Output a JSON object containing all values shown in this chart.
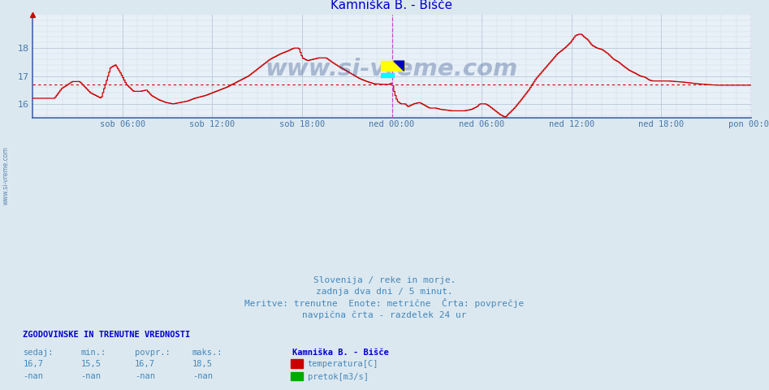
{
  "title": "Kamniška B. - Bišče",
  "title_color": "#0000cc",
  "bg_color": "#dce8f0",
  "plot_bg_color": "#e8f0f8",
  "grid_color_major": "#b8c8d8",
  "grid_color_minor": "#ccd8e4",
  "line_color": "#cc0000",
  "avg_line_color": "#cc0000",
  "avg_value": 16.7,
  "ymin": 15.5,
  "ymax": 19.2,
  "yticks": [
    16,
    17,
    18
  ],
  "tick_label_color": "#4477aa",
  "watermark": "www.si-vreme.com",
  "watermark_color": "#1a3a7a",
  "watermark_alpha": 0.3,
  "subtitle1": "Slovenija / reke in morje.",
  "subtitle2": "zadnja dva dni / 5 minut.",
  "subtitle3": "Meritve: trenutne  Enote: metrične  Črta: povprečje",
  "subtitle4": "navpična črta - razdelek 24 ur",
  "subtitle_color": "#4488bb",
  "legend_title": "Kamniška B. - Bišče",
  "legend_items": [
    {
      "label": "temperatura[C]",
      "color": "#cc0000"
    },
    {
      "label": "pretok[m3/s]",
      "color": "#00aa00"
    }
  ],
  "stats_header": "ZGODOVINSKE IN TRENUTNE VREDNOSTI",
  "stats_cols": [
    "sedaj:",
    "min.:",
    "povpr.:",
    "maks.:"
  ],
  "stats_row1": [
    "16,7",
    "15,5",
    "16,7",
    "18,5"
  ],
  "stats_row2": [
    "-nan",
    "-nan",
    "-nan",
    "-nan"
  ],
  "x_tick_labels": [
    "sob 06:00",
    "sob 12:00",
    "sob 18:00",
    "ned 00:00",
    "ned 06:00",
    "ned 12:00",
    "ned 18:00",
    "pon 00:00"
  ],
  "x_tick_positions": [
    0.125,
    0.25,
    0.375,
    0.5,
    0.625,
    0.75,
    0.875,
    1.0
  ],
  "vertical_lines": [
    0.5,
    1.0
  ],
  "vertical_line_color": "#cc44cc",
  "spine_color": "#4466aa",
  "left_side_text": "www.si-vreme.com"
}
